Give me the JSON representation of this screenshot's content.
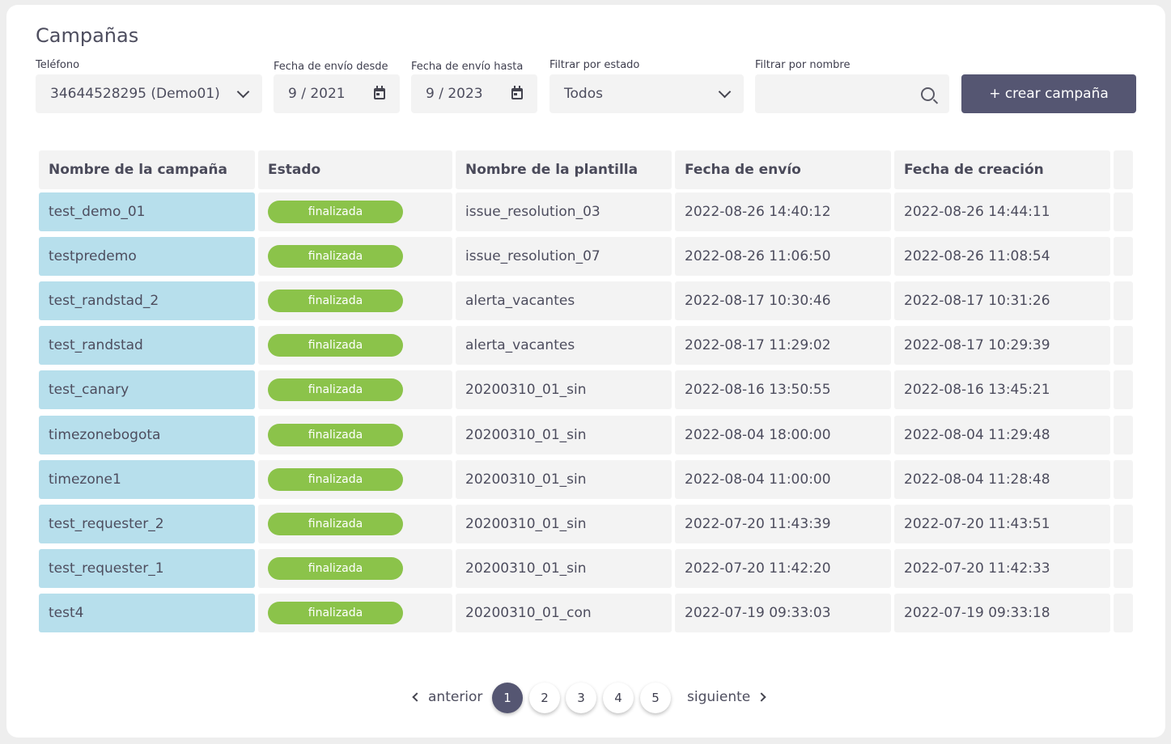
{
  "page": {
    "title": "Campañas"
  },
  "filters": {
    "phone": {
      "label": "Teléfono",
      "value": "34644528295 (Demo01)"
    },
    "date_from": {
      "label": "Fecha de envío desde",
      "value": "9 / 2021"
    },
    "date_to": {
      "label": "Fecha de envío hasta",
      "value": "9 / 2023"
    },
    "status": {
      "label": "Filtrar por estado",
      "value": "Todos"
    },
    "name": {
      "label": "Filtrar por nombre",
      "value": ""
    }
  },
  "actions": {
    "create_label": "+ crear campaña"
  },
  "table": {
    "columns": [
      "Nombre de la campaña",
      "Estado",
      "Nombre de la plantilla",
      "Fecha de envío",
      "Fecha de creación",
      ""
    ],
    "rows": [
      {
        "name": "test_demo_01",
        "status": "finalizada",
        "template": "issue_resolution_03",
        "sent": "2022-08-26 14:40:12",
        "created": "2022-08-26 14:44:11"
      },
      {
        "name": "testpredemo",
        "status": "finalizada",
        "template": "issue_resolution_07",
        "sent": "2022-08-26 11:06:50",
        "created": "2022-08-26 11:08:54"
      },
      {
        "name": "test_randstad_2",
        "status": "finalizada",
        "template": "alerta_vacantes",
        "sent": "2022-08-17 10:30:46",
        "created": "2022-08-17 10:31:26"
      },
      {
        "name": "test_randstad",
        "status": "finalizada",
        "template": "alerta_vacantes",
        "sent": "2022-08-17 11:29:02",
        "created": "2022-08-17 10:29:39"
      },
      {
        "name": "test_canary",
        "status": "finalizada",
        "template": "20200310_01_sin",
        "sent": "2022-08-16 13:50:55",
        "created": "2022-08-16 13:45:21"
      },
      {
        "name": "timezonebogota",
        "status": "finalizada",
        "template": "20200310_01_sin",
        "sent": "2022-08-04 18:00:00",
        "created": "2022-08-04 11:29:48"
      },
      {
        "name": "timezone1",
        "status": "finalizada",
        "template": "20200310_01_sin",
        "sent": "2022-08-04 11:00:00",
        "created": "2022-08-04 11:28:48"
      },
      {
        "name": "test_requester_2",
        "status": "finalizada",
        "template": "20200310_01_sin",
        "sent": "2022-07-20 11:43:39",
        "created": "2022-07-20 11:43:51"
      },
      {
        "name": "test_requester_1",
        "status": "finalizada",
        "template": "20200310_01_sin",
        "sent": "2022-07-20 11:42:20",
        "created": "2022-07-20 11:42:33"
      },
      {
        "name": "test4",
        "status": "finalizada",
        "template": "20200310_01_con",
        "sent": "2022-07-19 09:33:03",
        "created": "2022-07-19 09:33:18"
      }
    ]
  },
  "pagination": {
    "prev_label": "anterior",
    "next_label": "siguiente",
    "pages": [
      "1",
      "2",
      "3",
      "4",
      "5"
    ],
    "current": "1"
  },
  "colors": {
    "accent": "#555672",
    "badge_green": "#8bc34a",
    "name_cell": "#b7dfec",
    "cell_bg": "#f3f3f3"
  },
  "icons": {
    "select": "chevron-down-icon",
    "date": "calendar-icon",
    "search": "search-icon",
    "prev": "chevron-left-icon",
    "next": "chevron-right-icon"
  }
}
